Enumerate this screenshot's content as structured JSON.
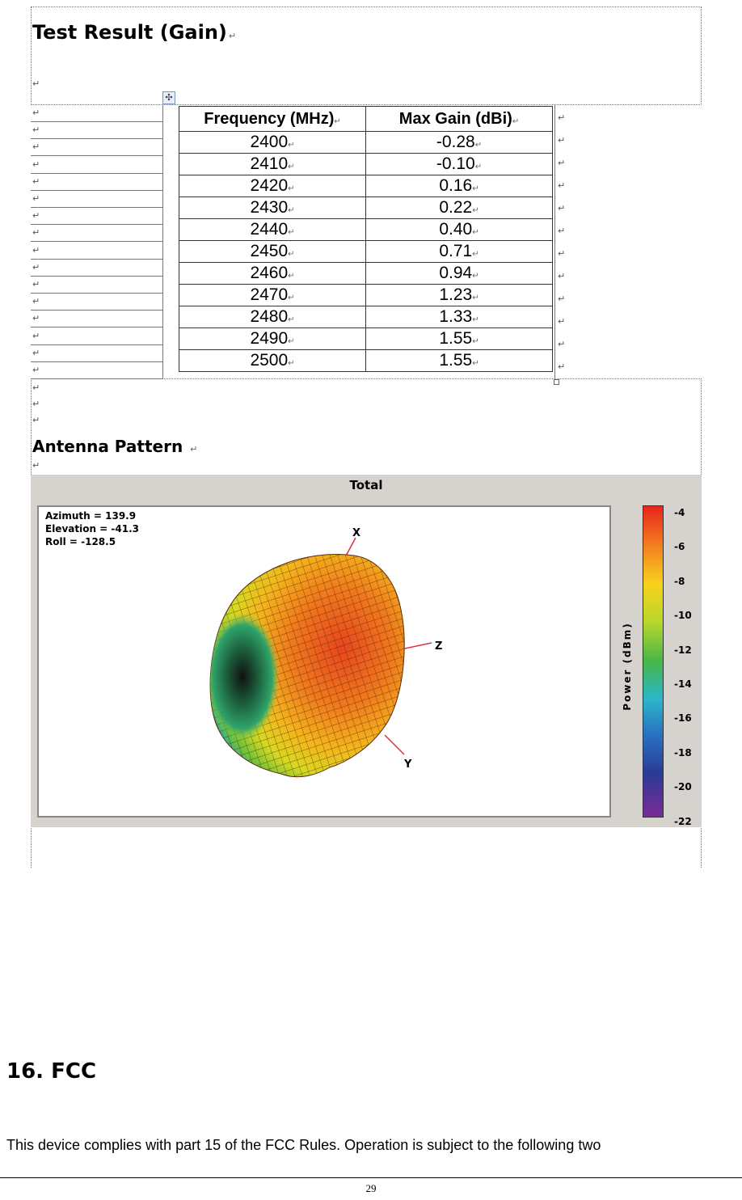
{
  "gain_section": {
    "title": "Test Result (Gain)"
  },
  "table": {
    "headers": [
      "Frequency (MHz)",
      "Max Gain (dBi)"
    ],
    "rows": [
      [
        "2400",
        "-0.28"
      ],
      [
        "2410",
        "-0.10"
      ],
      [
        "2420",
        "0.16"
      ],
      [
        "2430",
        "0.22"
      ],
      [
        "2440",
        "0.40"
      ],
      [
        "2450",
        "0.71"
      ],
      [
        "2460",
        "0.94"
      ],
      [
        "2470",
        "1.23"
      ],
      [
        "2480",
        "1.33"
      ],
      [
        "2490",
        "1.55"
      ],
      [
        "2500",
        "1.55"
      ]
    ]
  },
  "pattern_section": {
    "title": "Antenna Pattern"
  },
  "figure": {
    "title": "Total",
    "azimuth": "Azimuth = 139.9",
    "elevation": "Elevation = -41.3",
    "roll": "Roll = -128.5",
    "axes": {
      "x": "X",
      "y": "Y",
      "z": "Z"
    },
    "colorbar_label": "Power (dBm)",
    "colorbar_ticks": [
      "-4",
      "-6",
      "-8",
      "-10",
      "-12",
      "-14",
      "-16",
      "-18",
      "-20",
      "-22"
    ]
  },
  "fcc": {
    "heading": "16. FCC",
    "body": "This device complies with part 15 of the FCC Rules. Operation is subject to the following two"
  },
  "page_number": "29",
  "marks": {
    "paragraph": "↵"
  }
}
